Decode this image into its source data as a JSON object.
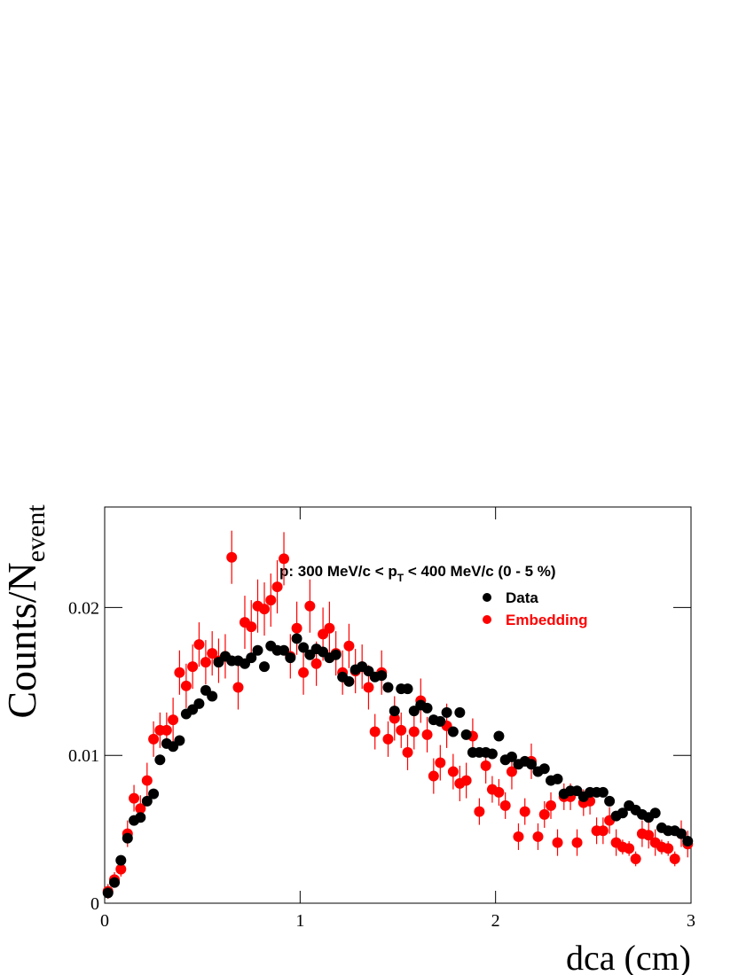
{
  "chart_data": {
    "type": "scatter",
    "ylabel": {
      "text": "Counts/N",
      "sub": "event"
    },
    "xlabel": "dca (cm)",
    "annotation": [
      "p: 300 MeV/c < p",
      "T",
      " < 400 MeV/c (0 - 5 %)"
    ],
    "xlim": [
      0,
      3
    ],
    "ylim": [
      0,
      0.0268
    ],
    "xticks": [
      0,
      1,
      2,
      3
    ],
    "yticks": [
      0,
      0.01,
      0.02
    ],
    "legend": "upper right",
    "x": [
      0.017,
      0.05,
      0.083,
      0.117,
      0.15,
      0.183,
      0.217,
      0.25,
      0.283,
      0.317,
      0.35,
      0.383,
      0.417,
      0.45,
      0.483,
      0.517,
      0.55,
      0.583,
      0.617,
      0.65,
      0.683,
      0.717,
      0.75,
      0.783,
      0.817,
      0.85,
      0.883,
      0.917,
      0.95,
      0.983,
      1.017,
      1.05,
      1.083,
      1.117,
      1.15,
      1.183,
      1.217,
      1.25,
      1.283,
      1.317,
      1.35,
      1.383,
      1.417,
      1.45,
      1.483,
      1.517,
      1.55,
      1.583,
      1.617,
      1.65,
      1.683,
      1.717,
      1.75,
      1.783,
      1.817,
      1.85,
      1.883,
      1.917,
      1.95,
      1.983,
      2.017,
      2.05,
      2.083,
      2.117,
      2.15,
      2.183,
      2.217,
      2.25,
      2.283,
      2.317,
      2.35,
      2.383,
      2.417,
      2.45,
      2.483,
      2.517,
      2.55,
      2.583,
      2.617,
      2.65,
      2.683,
      2.717,
      2.75,
      2.783,
      2.817,
      2.85,
      2.883,
      2.917,
      2.95,
      2.983
    ],
    "series": [
      {
        "name": "Embedding",
        "color": "#ff0000",
        "values": [
          0.0008,
          0.0016,
          0.0023,
          0.0047,
          0.0071,
          0.0064,
          0.0083,
          0.0111,
          0.0117,
          0.0117,
          0.0124,
          0.0156,
          0.0147,
          0.016,
          0.0175,
          0.0163,
          0.0169,
          0.0164,
          0.0167,
          0.0234,
          0.0146,
          0.019,
          0.0187,
          0.0201,
          0.0199,
          0.0205,
          0.0214,
          0.0233,
          0.0167,
          0.0186,
          0.0156,
          0.0201,
          0.0162,
          0.0182,
          0.0186,
          0.0169,
          0.0156,
          0.0174,
          0.0157,
          0.016,
          0.0146,
          0.0116,
          0.0156,
          0.0111,
          0.0125,
          0.0117,
          0.0102,
          0.0116,
          0.0137,
          0.0114,
          0.0086,
          0.0095,
          0.012,
          0.0089,
          0.0081,
          0.0083,
          0.0113,
          0.0062,
          0.0093,
          0.0077,
          0.0075,
          0.0066,
          0.0089,
          0.0045,
          0.0062,
          0.0096,
          0.0045,
          0.006,
          0.0066,
          0.0041,
          0.0072,
          0.0072,
          0.0041,
          0.0068,
          0.0069,
          0.0049,
          0.0049,
          0.0056,
          0.0041,
          0.0038,
          0.0037,
          0.003,
          0.0047,
          0.0046,
          0.0041,
          0.0038,
          0.0037,
          0.003,
          0.0047,
          0.004
        ],
        "errors": [
          0.0005,
          0.0005,
          0.0005,
          0.0009,
          0.0009,
          0.0009,
          0.0012,
          0.0012,
          0.0012,
          0.0012,
          0.0015,
          0.0015,
          0.0015,
          0.0015,
          0.0015,
          0.0015,
          0.0015,
          0.0015,
          0.0015,
          0.0018,
          0.0015,
          0.0018,
          0.0018,
          0.0018,
          0.0018,
          0.0018,
          0.0018,
          0.0018,
          0.0015,
          0.0018,
          0.0015,
          0.0018,
          0.0015,
          0.0018,
          0.0018,
          0.0015,
          0.0015,
          0.0015,
          0.0015,
          0.0015,
          0.0015,
          0.0012,
          0.0015,
          0.0012,
          0.0015,
          0.0012,
          0.0012,
          0.0012,
          0.0015,
          0.0012,
          0.0012,
          0.0012,
          0.0015,
          0.0012,
          0.0012,
          0.0012,
          0.0012,
          0.0009,
          0.0012,
          0.0009,
          0.0009,
          0.0009,
          0.0012,
          0.0009,
          0.0009,
          0.0012,
          0.0009,
          0.0009,
          0.0009,
          0.0009,
          0.0009,
          0.0009,
          0.0009,
          0.0009,
          0.0009,
          0.0009,
          0.0009,
          0.0009,
          0.0009,
          0.0005,
          0.0005,
          0.0005,
          0.0009,
          0.0009,
          0.0009,
          0.0005,
          0.0005,
          0.0005,
          0.0009,
          0.0009
        ]
      },
      {
        "name": "Data",
        "color": "#000000",
        "values": [
          0.0007,
          0.0014,
          0.0029,
          0.0044,
          0.0056,
          0.0058,
          0.0069,
          0.0074,
          0.0097,
          0.0108,
          0.0106,
          0.011,
          0.0128,
          0.0131,
          0.0135,
          0.0144,
          0.014,
          0.0163,
          0.0167,
          0.0164,
          0.0164,
          0.0162,
          0.0166,
          0.0171,
          0.016,
          0.0174,
          0.0171,
          0.0171,
          0.0166,
          0.0179,
          0.0173,
          0.0168,
          0.0172,
          0.017,
          0.0166,
          0.0168,
          0.0153,
          0.015,
          0.0158,
          0.016,
          0.0157,
          0.0153,
          0.0154,
          0.0146,
          0.013,
          0.0145,
          0.0145,
          0.013,
          0.0134,
          0.0132,
          0.0124,
          0.0123,
          0.0129,
          0.0116,
          0.0129,
          0.0114,
          0.0102,
          0.0102,
          0.0102,
          0.0101,
          0.0113,
          0.0097,
          0.0099,
          0.0094,
          0.0096,
          0.0094,
          0.0089,
          0.0091,
          0.0083,
          0.0084,
          0.0074,
          0.0076,
          0.0076,
          0.0072,
          0.0075,
          0.0075,
          0.0075,
          0.0069,
          0.0059,
          0.0061,
          0.0066,
          0.0063,
          0.006,
          0.0058,
          0.0061,
          0.0051,
          0.0049,
          0.0049,
          0.0047,
          0.0042
        ]
      }
    ]
  }
}
